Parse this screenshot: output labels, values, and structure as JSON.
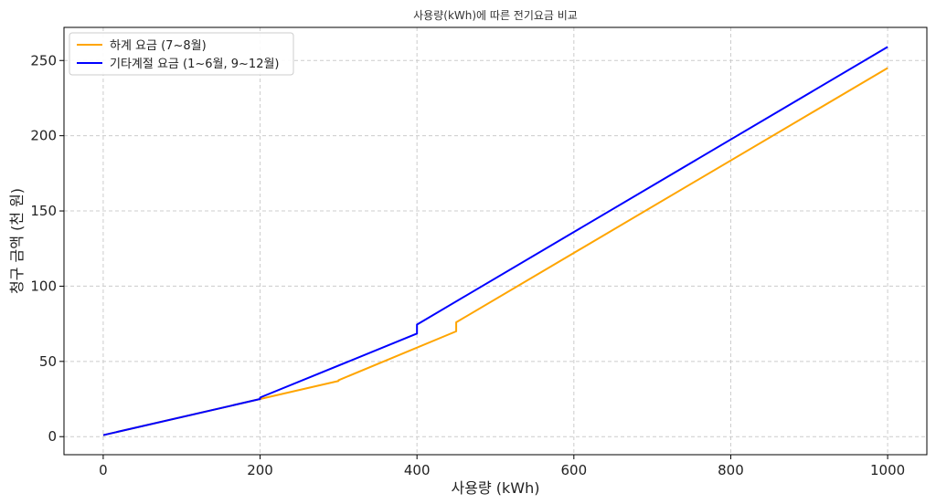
{
  "chart_data": {
    "type": "line",
    "title": "사용량(kWh)에 따른 전기요금 비교",
    "xlabel": "사용량 (kWh)",
    "ylabel": "청구 금액 (천 원)",
    "xlim": [
      -50,
      1050
    ],
    "ylim": [
      -12,
      272
    ],
    "xticks": [
      0,
      200,
      400,
      600,
      800,
      1000
    ],
    "yticks": [
      0,
      50,
      100,
      150,
      200,
      250
    ],
    "grid": true,
    "legend_position": "top-left",
    "series": [
      {
        "name": "하계 요금 (7~8월)",
        "color": "#FFA500",
        "points": [
          [
            0,
            1
          ],
          [
            200,
            25
          ],
          [
            300,
            37
          ],
          [
            300,
            37.5
          ],
          [
            450,
            70
          ],
          [
            450,
            76
          ],
          [
            1000,
            245
          ]
        ]
      },
      {
        "name": "기타계절 요금 (1~6월, 9~12월)",
        "color": "#0000FF",
        "points": [
          [
            0,
            1
          ],
          [
            200,
            25
          ],
          [
            200,
            26
          ],
          [
            400,
            68.5
          ],
          [
            400,
            74.5
          ],
          [
            1000,
            259
          ]
        ]
      }
    ]
  }
}
